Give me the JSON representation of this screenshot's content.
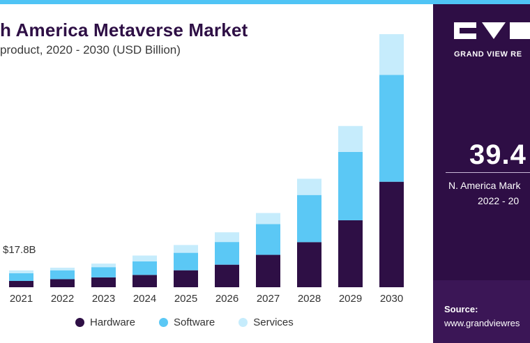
{
  "header": {
    "title": "h America Metaverse Market",
    "subtitle": "product, 2020 - 2030 (USD Billion)"
  },
  "annotation": {
    "label": "$17.8B"
  },
  "colors": {
    "hardware": "#2e0f45",
    "software": "#5bc8f5",
    "services": "#c6ecfc",
    "accent": "#4fc4f5",
    "panel": "#2e0e45"
  },
  "chart_data": {
    "type": "bar",
    "stacked": true,
    "categories": [
      "2021",
      "2022",
      "2023",
      "2024",
      "2025",
      "2026",
      "2027",
      "2028",
      "2029",
      "2030"
    ],
    "series": [
      {
        "name": "Hardware",
        "values": [
          4.6,
          5.9,
          7.2,
          9.0,
          12.4,
          16.5,
          23.7,
          33.0,
          49.0,
          77.2
        ]
      },
      {
        "name": "Software",
        "values": [
          5.7,
          6.5,
          7.5,
          9.9,
          12.8,
          16.6,
          22.5,
          34.5,
          50.0,
          78.2
        ]
      },
      {
        "name": "Services",
        "values": [
          2.0,
          1.9,
          2.6,
          4.3,
          5.7,
          7.1,
          8.1,
          11.9,
          19.0,
          29.8
        ]
      }
    ],
    "ylim": [
      0,
      200
    ],
    "legend": "bottom",
    "grid": false
  },
  "legend": {
    "items": [
      {
        "label": "Hardware"
      },
      {
        "label": "Software"
      },
      {
        "label": "Services"
      }
    ]
  },
  "panel": {
    "brand": "GRAND VIEW RE",
    "value": "39.4",
    "desc_line1": "N. America Mark",
    "desc_line2": "2022 - 20",
    "source_label": "Source:",
    "source_url": "www.grandviewres"
  }
}
